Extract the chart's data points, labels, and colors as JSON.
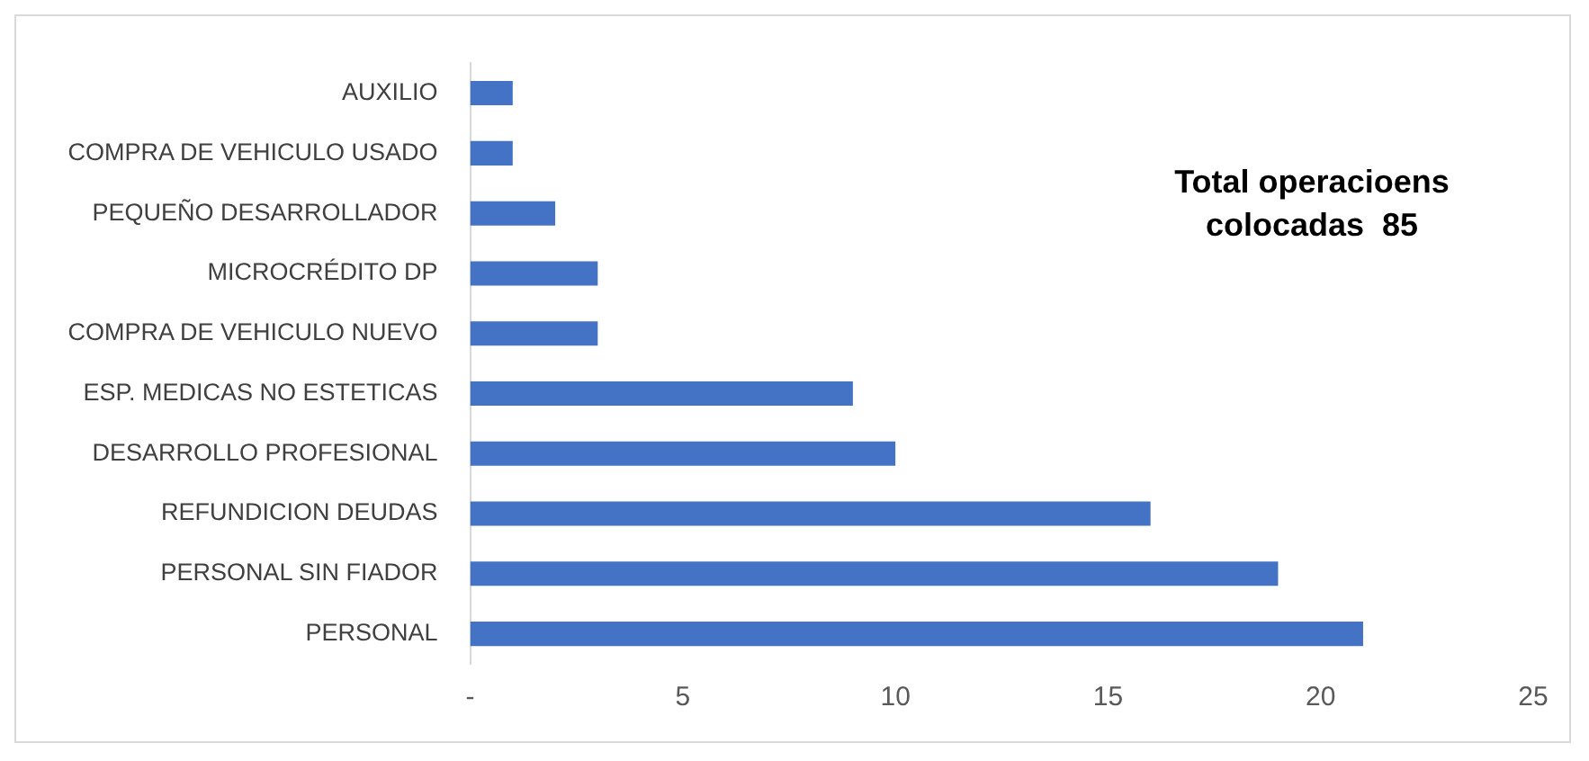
{
  "chart_data": {
    "type": "bar",
    "orientation": "horizontal",
    "categories": [
      "AUXILIO",
      "COMPRA DE VEHICULO USADO",
      "PEQUEÑO DESARROLLADOR",
      "MICROCRÉDITO DP",
      "COMPRA DE VEHICULO NUEVO",
      "ESP. MEDICAS NO ESTETICAS",
      "DESARROLLO PROFESIONAL",
      "REFUNDICION DEUDAS",
      "PERSONAL SIN FIADOR",
      "PERSONAL"
    ],
    "values": [
      1,
      1,
      2,
      3,
      3,
      9,
      10,
      16,
      19,
      21
    ],
    "color": "#4472c4",
    "xlim": [
      0,
      25
    ],
    "xticks": [
      {
        "value": 0,
        "label": "-"
      },
      5,
      10,
      15,
      20,
      25
    ],
    "grid": false,
    "legend": false,
    "annotations": [
      "Total operacioens colocadas  85"
    ]
  }
}
